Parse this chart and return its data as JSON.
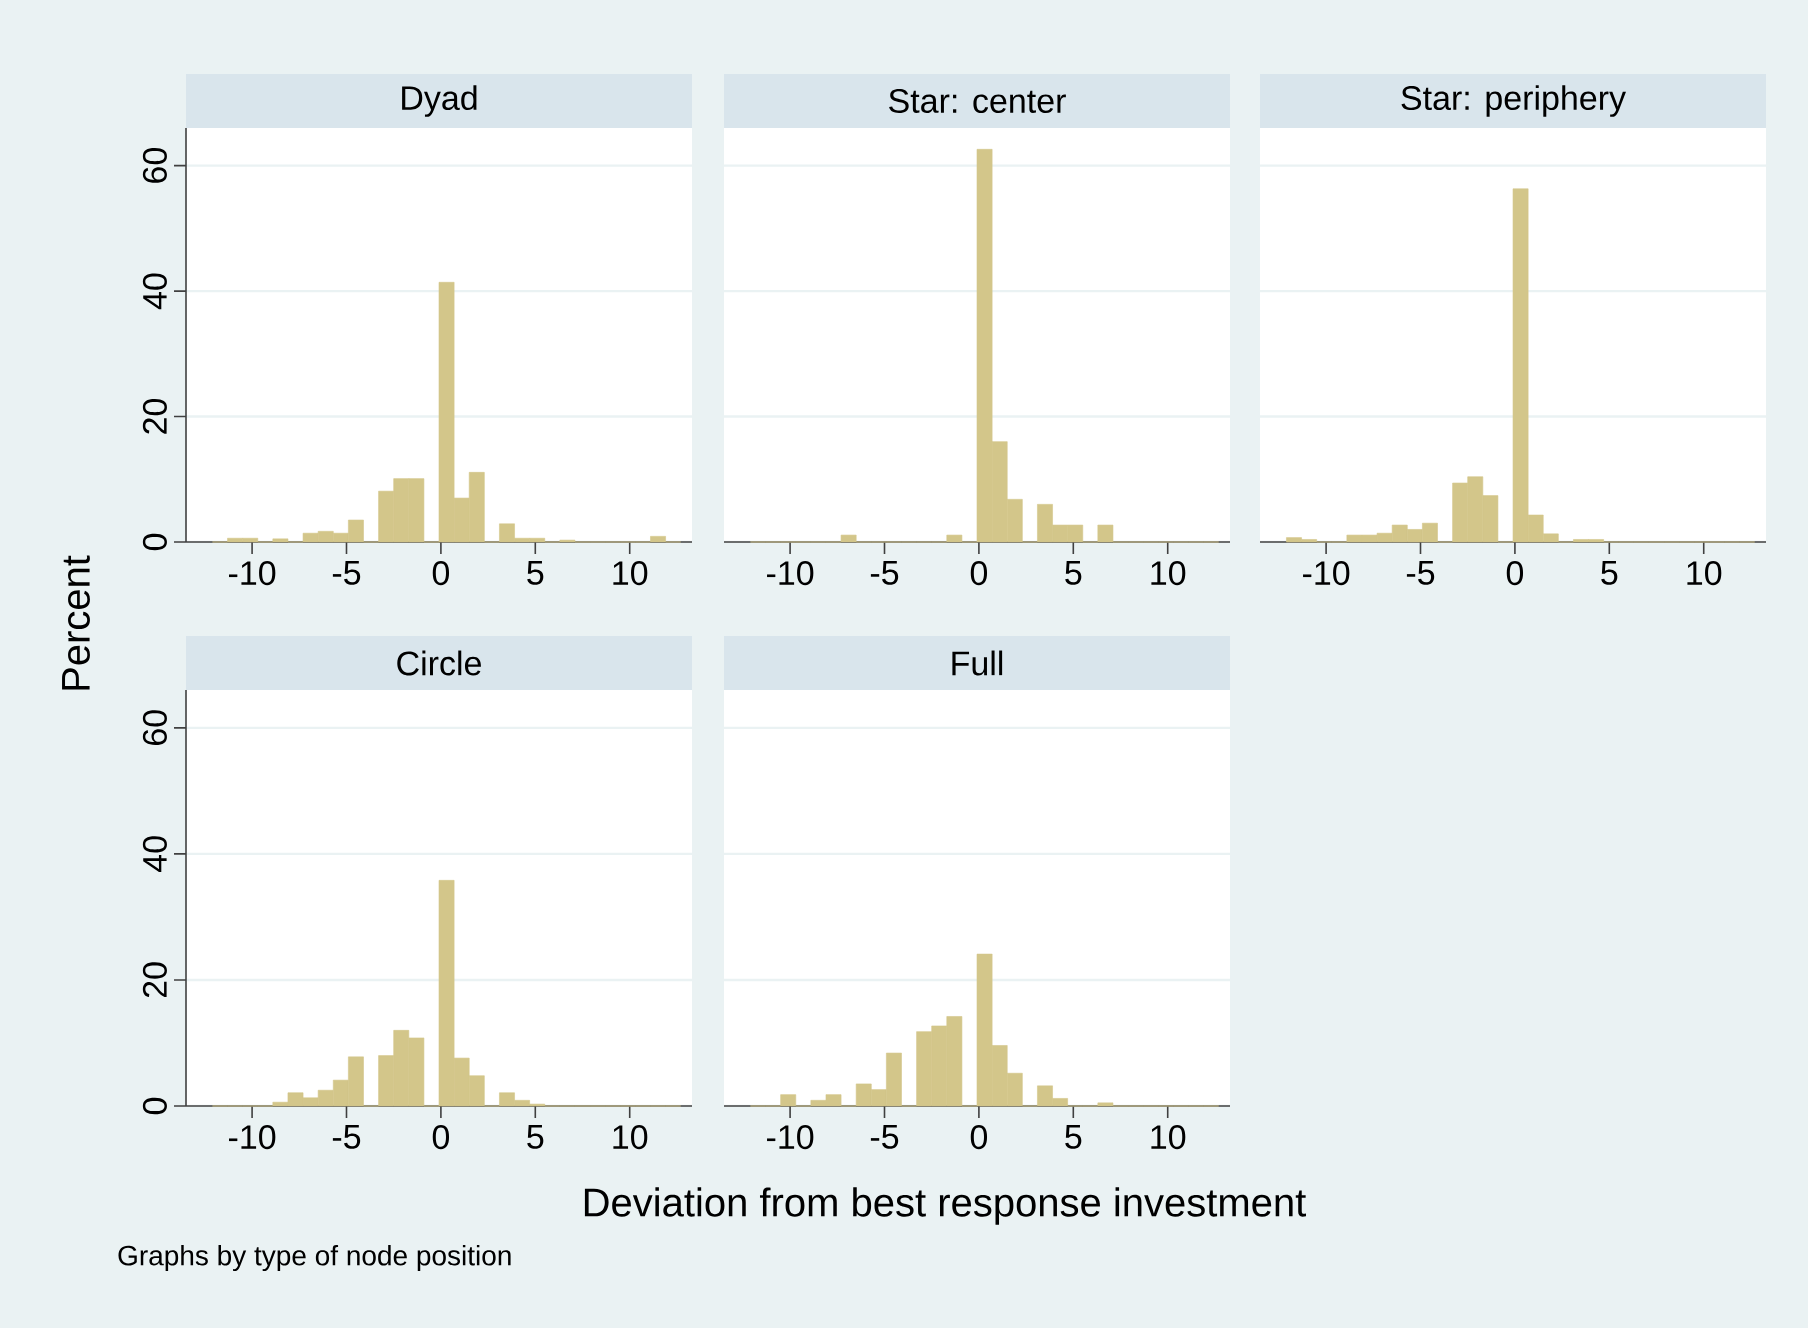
{
  "chart_data": [
    {
      "type": "histogram",
      "title": "Dyad",
      "ylabel": "Percent",
      "color": "#d3c68a",
      "grid": "y",
      "xlim": [
        -13.5,
        13.3
      ],
      "ylim": [
        0,
        66
      ],
      "xticks": [
        -10,
        -5,
        0,
        5,
        10
      ],
      "yticks": [
        0,
        20,
        40,
        60
      ],
      "bins": [
        -12.1,
        -11.3,
        -10.5,
        -9.7,
        -8.9,
        -8.1,
        -7.3,
        -6.5,
        -5.7,
        -4.9,
        -4.1,
        -3.3,
        -2.5,
        -1.7,
        -0.9,
        -0.1,
        0.7,
        1.5,
        2.3,
        3.1,
        3.9,
        4.7,
        5.5,
        6.3,
        7.1,
        7.9,
        8.7,
        9.5,
        10.3,
        11.1,
        11.9,
        12.7
      ],
      "values": [
        0,
        0.6,
        0.6,
        0,
        0.5,
        0,
        1.4,
        1.7,
        1.4,
        3.5,
        0,
        8.1,
        10.1,
        10.1,
        0,
        41.4,
        7.0,
        11.1,
        0,
        2.9,
        0.6,
        0.6,
        0,
        0.3,
        0,
        0,
        0,
        0,
        0,
        0.9,
        0
      ]
    },
    {
      "type": "histogram",
      "title": "Star: center",
      "color": "#d3c68a",
      "grid": "y",
      "tick_labels": "x",
      "xlim": [
        -13.5,
        13.3
      ],
      "ylim": [
        0,
        66
      ],
      "xticks": [
        -10,
        -5,
        0,
        5,
        10
      ],
      "yticks": [
        0,
        20,
        40,
        60
      ],
      "bins": [
        -12.1,
        -11.3,
        -10.5,
        -9.7,
        -8.9,
        -8.1,
        -7.3,
        -6.5,
        -5.7,
        -4.9,
        -4.1,
        -3.3,
        -2.5,
        -1.7,
        -0.9,
        -0.1,
        0.7,
        1.5,
        2.3,
        3.1,
        3.9,
        4.7,
        5.5,
        6.3,
        7.1,
        7.9,
        8.7,
        9.5,
        10.3,
        11.1,
        11.9,
        12.7
      ],
      "values": [
        0,
        0,
        0,
        0,
        0,
        0,
        1.1,
        0,
        0,
        0,
        0,
        0,
        0,
        1.1,
        0,
        62.6,
        16.0,
        6.8,
        0,
        6.0,
        2.7,
        2.7,
        0,
        2.7,
        0,
        0,
        0,
        0,
        0,
        0,
        0
      ]
    },
    {
      "type": "histogram",
      "title": "Star: periphery",
      "color": "#d3c68a",
      "grid": "y",
      "tick_labels": "x",
      "xlim": [
        -13.5,
        13.3
      ],
      "ylim": [
        0,
        66
      ],
      "xticks": [
        -10,
        -5,
        0,
        5,
        10
      ],
      "yticks": [
        0,
        20,
        40,
        60
      ],
      "bins": [
        -12.1,
        -11.3,
        -10.5,
        -9.7,
        -8.9,
        -8.1,
        -7.3,
        -6.5,
        -5.7,
        -4.9,
        -4.1,
        -3.3,
        -2.5,
        -1.7,
        -0.9,
        -0.1,
        0.7,
        1.5,
        2.3,
        3.1,
        3.9,
        4.7,
        5.5,
        6.3,
        7.1,
        7.9,
        8.7,
        9.5,
        10.3,
        11.1,
        11.9,
        12.7
      ],
      "values": [
        0.7,
        0.4,
        0,
        0,
        1.1,
        1.1,
        1.4,
        2.7,
        2.0,
        3.0,
        0,
        9.4,
        10.4,
        7.4,
        0,
        56.3,
        4.3,
        1.3,
        0,
        0.4,
        0.4,
        0,
        0,
        0,
        0,
        0,
        0,
        0,
        0,
        0,
        0
      ]
    },
    {
      "type": "histogram",
      "title": "Circle",
      "color": "#d3c68a",
      "grid": "y",
      "xlim": [
        -13.5,
        13.3
      ],
      "ylim": [
        0,
        66
      ],
      "xticks": [
        -10,
        -5,
        0,
        5,
        10
      ],
      "yticks": [
        0,
        20,
        40,
        60
      ],
      "bins": [
        -12.1,
        -11.3,
        -10.5,
        -9.7,
        -8.9,
        -8.1,
        -7.3,
        -6.5,
        -5.7,
        -4.9,
        -4.1,
        -3.3,
        -2.5,
        -1.7,
        -0.9,
        -0.1,
        0.7,
        1.5,
        2.3,
        3.1,
        3.9,
        4.7,
        5.5,
        6.3,
        7.1,
        7.9,
        8.7,
        9.5,
        10.3,
        11.1,
        11.9,
        12.7
      ],
      "values": [
        0,
        0,
        0,
        0,
        0.6,
        2.1,
        1.3,
        2.5,
        4.1,
        7.8,
        0,
        8.0,
        12.0,
        10.8,
        0,
        35.8,
        7.6,
        4.8,
        0,
        2.1,
        0.9,
        0.3,
        0,
        0,
        0,
        0,
        0,
        0,
        0,
        0,
        0
      ]
    },
    {
      "type": "histogram",
      "title": "Full",
      "xlabel": "Deviation from best response investment",
      "annotations": [
        "Graphs by type of node position"
      ],
      "color": "#d3c68a",
      "grid": "y",
      "tick_labels": "x",
      "xlim": [
        -13.5,
        13.3
      ],
      "ylim": [
        0,
        66
      ],
      "xticks": [
        -10,
        -5,
        0,
        5,
        10
      ],
      "yticks": [
        0,
        20,
        40,
        60
      ],
      "bins": [
        -12.1,
        -11.3,
        -10.5,
        -9.7,
        -8.9,
        -8.1,
        -7.3,
        -6.5,
        -5.7,
        -4.9,
        -4.1,
        -3.3,
        -2.5,
        -1.7,
        -0.9,
        -0.1,
        0.7,
        1.5,
        2.3,
        3.1,
        3.9,
        4.7,
        5.5,
        6.3,
        7.1,
        7.9,
        8.7,
        9.5,
        10.3,
        11.1,
        11.9,
        12.7
      ],
      "values": [
        0,
        0,
        1.8,
        0,
        0.9,
        1.8,
        0,
        3.5,
        2.6,
        8.4,
        0,
        11.8,
        12.7,
        14.2,
        0,
        24.1,
        9.6,
        5.2,
        0,
        3.2,
        1.2,
        0,
        0,
        0.5,
        0,
        0,
        0,
        0,
        0,
        0,
        0
      ]
    }
  ]
}
